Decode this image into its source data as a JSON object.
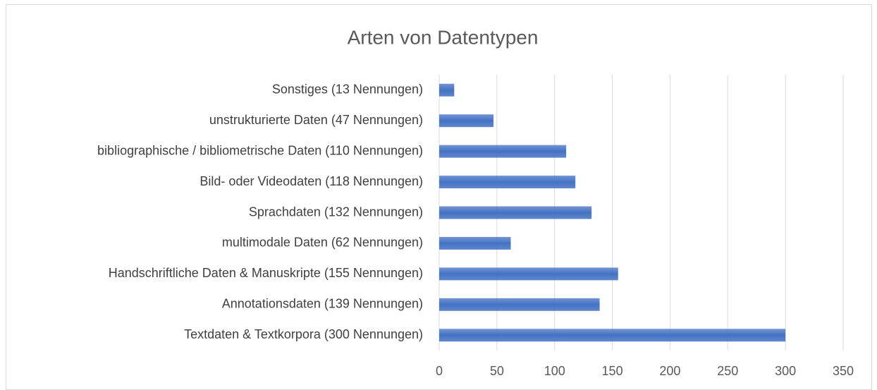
{
  "chart_data": {
    "type": "bar",
    "orientation": "horizontal",
    "title": "Arten von Datentypen",
    "categories": [
      "Sonstiges (13 Nennungen)",
      "unstrukturierte Daten (47 Nennungen)",
      "bibliographische / bibliometrische Daten (110 Nennungen)",
      "Bild- oder Videodaten (118 Nennungen)",
      "Sprachdaten (132 Nennungen)",
      "multimodale Daten (62 Nennungen)",
      "Handschriftliche Daten & Manuskripte (155 Nennungen)",
      "Annotationsdaten (139 Nennungen)",
      "Textdaten & Textkorpora (300 Nennungen)"
    ],
    "values": [
      13,
      47,
      110,
      118,
      132,
      62,
      155,
      139,
      300
    ],
    "color": "#4472c4",
    "xlim": [
      0,
      350
    ],
    "xticks": [
      0,
      50,
      100,
      150,
      200,
      250,
      300,
      350
    ],
    "grid": true
  }
}
